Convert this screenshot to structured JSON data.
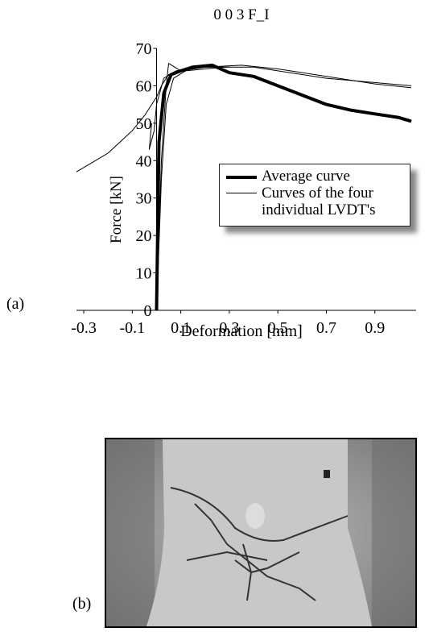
{
  "chart_data": {
    "type": "line",
    "title": "0 0 3 F_I",
    "x_label": "Deformation [mm]",
    "y_label": "Force [kN]",
    "xlim": [
      -0.33,
      1.07
    ],
    "ylim": [
      0,
      70
    ],
    "xticks": [
      -0.3,
      -0.1,
      0.1,
      0.3,
      0.5,
      0.7,
      0.9
    ],
    "yticks": [
      0,
      10,
      20,
      30,
      40,
      50,
      60,
      70
    ],
    "series": [
      {
        "name": "Average curve",
        "color": "#000000",
        "width": 4,
        "x": [
          0,
          0.01,
          0.03,
          0.06,
          0.1,
          0.15,
          0.23,
          0.3,
          0.4,
          0.5,
          0.6,
          0.7,
          0.8,
          0.9,
          1.0,
          1.05
        ],
        "values": [
          0,
          45,
          58,
          63,
          64,
          65,
          65.5,
          63.5,
          62.5,
          60,
          57.5,
          55,
          53.5,
          52.5,
          51.5,
          50.5
        ]
      },
      {
        "name": "Curves of the four individual LVDT's",
        "color": "#000000",
        "width": 1,
        "lines": [
          {
            "x": [
              -0.33,
              -0.2,
              -0.1,
              -0.05,
              0,
              0.02,
              0.05,
              0.1,
              0.2,
              0.35,
              0.5,
              0.7,
              0.9,
              1.05
            ],
            "values": [
              37,
              42,
              48,
              52,
              57,
              60,
              63,
              64,
              65,
              65.5,
              64.5,
              62.5,
              60.5,
              59.5
            ]
          },
          {
            "x": [
              -0.02,
              -0.03,
              -0.01,
              0,
              0.03,
              0.08,
              0.2,
              0.4,
              0.7,
              1.05
            ],
            "values": [
              50,
              43,
              48,
              55,
              62,
              64,
              65,
              65,
              62,
              60
            ]
          },
          {
            "x": [
              0,
              0.01,
              0.02,
              0.04,
              0.05,
              0.1,
              0.2,
              0.3
            ],
            "values": [
              0,
              20,
              40,
              60,
              66,
              64,
              65,
              65
            ]
          },
          {
            "x": [
              0,
              0.02,
              0.04,
              0.07,
              0.12,
              0.2,
              0.28
            ],
            "values": [
              0,
              35,
              55,
              62,
              64,
              64.5,
              65
            ]
          }
        ]
      }
    ]
  },
  "panel_labels": [
    "(a)",
    "(b)"
  ]
}
